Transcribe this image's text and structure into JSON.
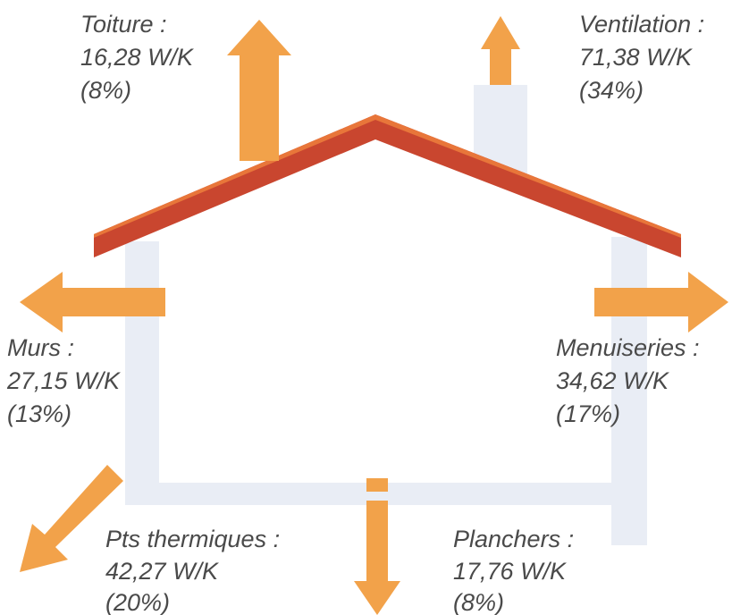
{
  "items": [
    {
      "name": "Toiture :",
      "value": "16,28 W/K",
      "share": "(8%)"
    },
    {
      "name": "Ventilation :",
      "value": "71,38 W/K",
      "share": "(34%)"
    },
    {
      "name": "Murs :",
      "value": "27,15 W/K",
      "share": "(13%)"
    },
    {
      "name": "Menuiseries :",
      "value": "34,62 W/K",
      "share": "(17%)"
    },
    {
      "name": "Pts thermiques :",
      "value": "42,27 W/K",
      "share": "(20%)"
    },
    {
      "name": "Planchers :",
      "value": "17,76 W/K",
      "share": "(8%)"
    }
  ]
}
